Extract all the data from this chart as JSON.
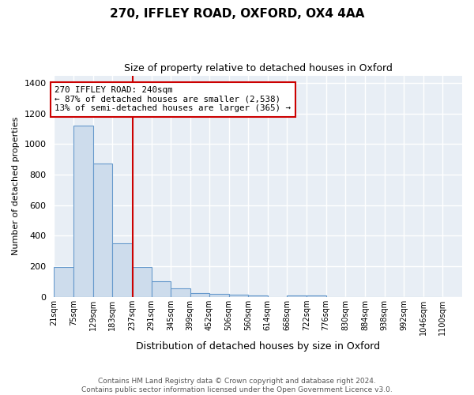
{
  "title": "270, IFFLEY ROAD, OXFORD, OX4 4AA",
  "subtitle": "Size of property relative to detached houses in Oxford",
  "xlabel": "Distribution of detached houses by size in Oxford",
  "ylabel": "Number of detached properties",
  "bin_labels": [
    "21sqm",
    "75sqm",
    "129sqm",
    "183sqm",
    "237sqm",
    "291sqm",
    "345sqm",
    "399sqm",
    "452sqm",
    "506sqm",
    "560sqm",
    "614sqm",
    "668sqm",
    "722sqm",
    "776sqm",
    "830sqm",
    "884sqm",
    "938sqm",
    "992sqm",
    "1046sqm",
    "1100sqm"
  ],
  "bin_edges": [
    21,
    75,
    129,
    183,
    237,
    291,
    345,
    399,
    452,
    506,
    560,
    614,
    668,
    722,
    776,
    830,
    884,
    938,
    992,
    1046,
    1100
  ],
  "bar_heights": [
    195,
    1120,
    875,
    350,
    195,
    100,
    55,
    25,
    20,
    15,
    10,
    0,
    10,
    10,
    0,
    0,
    0,
    0,
    0,
    0
  ],
  "bar_color": "#cddcec",
  "bar_edge_color": "#6699cc",
  "vline_color": "#cc0000",
  "vline_x": 240,
  "annotation_text": "270 IFFLEY ROAD: 240sqm\n← 87% of detached houses are smaller (2,538)\n13% of semi-detached houses are larger (365) →",
  "annotation_box_color": "white",
  "annotation_box_edge_color": "#cc0000",
  "ylim": [
    0,
    1450
  ],
  "yticks": [
    0,
    200,
    400,
    600,
    800,
    1000,
    1200,
    1400
  ],
  "bg_color": "#e8eef5",
  "grid_color": "white",
  "footer_line1": "Contains HM Land Registry data © Crown copyright and database right 2024.",
  "footer_line2": "Contains public sector information licensed under the Open Government Licence v3.0."
}
